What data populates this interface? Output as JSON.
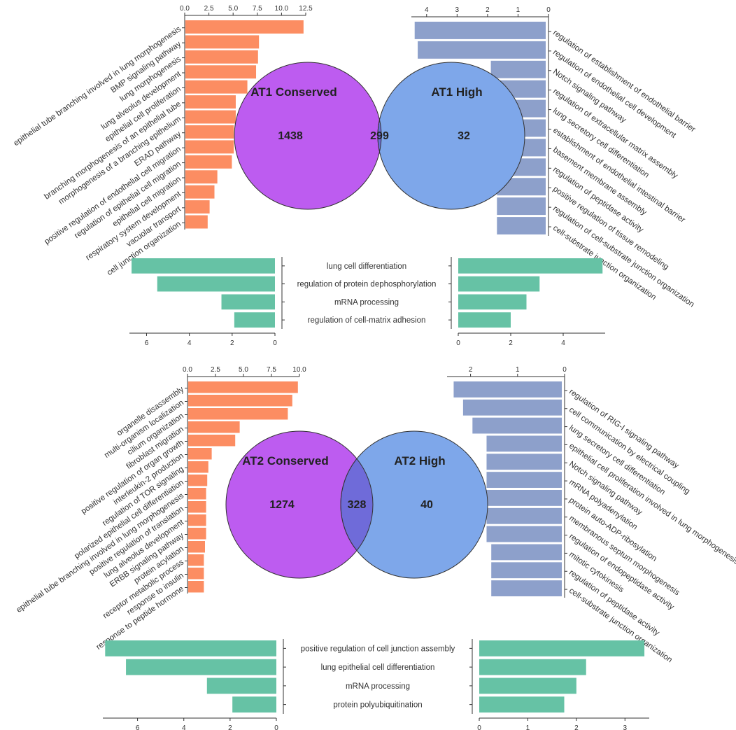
{
  "colors": {
    "conserved_bar": "#fc8d62",
    "high_bar": "#8da0cb",
    "shared_bar": "#66c2a5",
    "conserved_circle": "#bd5cf0",
    "high_circle": "#7ea7ea",
    "overlap": "#6f6bd9"
  },
  "chart_data": [
    {
      "type": "bar",
      "panel": "AT1",
      "role": "conserved",
      "orientation": "horizontal",
      "xlim": [
        0,
        12.5
      ],
      "ticks": [
        "0.0",
        "2.5",
        "5.0",
        "7.5",
        "10.0",
        "12.5"
      ],
      "categories": [
        "epithelial tube branching involved in lung morphogenesis",
        "BMP signaling pathway",
        "lung morphogenesis",
        "lung alveolus development",
        "epithelial cell proliferation",
        "branching morphogenesis of an epithelial tube",
        "morphogenesis of a branching epithelium",
        "ERAD pathway",
        "positive regulation of endothelial cell migration",
        "regulation of epithelial cell migration",
        "epithelial cell migration",
        "respiratory system development",
        "vacuolar transport",
        "cell junction organization"
      ],
      "values": [
        12.2,
        7.6,
        7.5,
        7.3,
        6.4,
        5.2,
        5.2,
        5.0,
        5.0,
        4.8,
        3.3,
        3.0,
        2.5,
        2.3
      ]
    },
    {
      "type": "bar",
      "panel": "AT1",
      "role": "high",
      "orientation": "horizontal",
      "reversed": true,
      "xlim": [
        0,
        4.5
      ],
      "ticks": [
        "4",
        "3",
        "2",
        "1",
        "0"
      ],
      "categories": [
        "regulation of establishment of endothelial barrier",
        "regulation of endothelial cell development",
        "Notch signaling pathway",
        "regulation of extracellular matrix assembly",
        "lung secretory cell differentiation",
        "establishment of endothelial intestinal barrier",
        "basement membrane assembly",
        "regulation of peptidase activity",
        "positive regulation of tissue remodeling",
        "regulation of cell-substrate junction organization",
        "cell-substrate junction organization"
      ],
      "values": [
        4.3,
        4.2,
        1.8,
        1.8,
        1.8,
        1.8,
        1.7,
        1.6,
        1.6,
        1.6,
        1.6
      ]
    },
    {
      "type": "bar",
      "panel": "AT1",
      "role": "shared",
      "orientation": "horizontal",
      "categories": [
        "lung cell differentiation",
        "regulation of protein dephosphorylation",
        "mRNA processing",
        "regulation of cell-matrix adhesion"
      ],
      "left": {
        "xlim": [
          0,
          6.8
        ],
        "ticks": [
          "6",
          "4",
          "2",
          "0"
        ],
        "values": [
          6.7,
          5.5,
          2.5,
          1.9
        ]
      },
      "right": {
        "xlim": [
          0,
          5.6
        ],
        "ticks": [
          "0",
          "2",
          "4"
        ],
        "values": [
          5.5,
          3.1,
          2.6,
          2.0
        ]
      }
    },
    {
      "type": "bar",
      "panel": "AT2",
      "role": "conserved",
      "orientation": "horizontal",
      "xlim": [
        0,
        10
      ],
      "ticks": [
        "0.0",
        "2.5",
        "5.0",
        "7.5",
        "10.0"
      ],
      "categories": [
        "organelle disassembly",
        "multi-organism localization",
        "cilium organization",
        "fibroblast migration",
        "positive regulation of organ growth",
        "interleukin-2 production",
        "regulation of TOR signaling",
        "polarized epithelial cell differentiation",
        "epithelial tube branching involved in lung morphogenesis",
        "positive regulation of translation",
        "lung alveolus development",
        "ERBB signaling pathway",
        "protein acylation",
        "receptor metabolic process",
        "response to insulin",
        "response to peptide hormone"
      ],
      "values": [
        9.8,
        9.3,
        8.9,
        4.6,
        4.2,
        2.1,
        1.8,
        1.7,
        1.6,
        1.6,
        1.6,
        1.6,
        1.5,
        1.4,
        1.4,
        1.4
      ]
    },
    {
      "type": "bar",
      "panel": "AT2",
      "role": "high",
      "orientation": "horizontal",
      "reversed": true,
      "xlim": [
        0,
        2.5
      ],
      "ticks": [
        "2",
        "1",
        "0"
      ],
      "categories": [
        "regulation of RIG-I signaling pathway",
        "cell communication by electrical coupling",
        "lung secretory cell differentiation",
        "epithelial cell proliferation involved in lung morphogenesis",
        "Notch signaling pathway",
        "mRNA polyadenylation",
        "protein auto-ADP-ribosylation",
        "membranous septum morphogenesis",
        "regulation of endopeptidase activity",
        "mitotic cytokinesis",
        "regulation of peptidase activity",
        "cell-substrate junction organization"
      ],
      "values": [
        2.3,
        2.1,
        1.9,
        1.6,
        1.6,
        1.6,
        1.6,
        1.6,
        1.6,
        1.5,
        1.5,
        1.5
      ]
    },
    {
      "type": "bar",
      "panel": "AT2",
      "role": "shared",
      "orientation": "horizontal",
      "categories": [
        "positive regulation of cell junction assembly",
        "lung epithelial cell differentiation",
        "mRNA processing",
        "protein polyubiquitination"
      ],
      "left": {
        "xlim": [
          0,
          7.5
        ],
        "ticks": [
          "6",
          "4",
          "2",
          "0"
        ],
        "values": [
          7.4,
          6.5,
          3.0,
          1.9
        ]
      },
      "right": {
        "xlim": [
          0,
          3.5
        ],
        "ticks": [
          "0",
          "1",
          "2",
          "3"
        ],
        "values": [
          3.4,
          2.2,
          2.0,
          1.75
        ]
      }
    }
  ],
  "venns": [
    {
      "left_label": "AT1 Conserved",
      "right_label": "AT1 High",
      "left_only": "1438",
      "overlap": "299",
      "right_only": "32"
    },
    {
      "left_label": "AT2 Conserved",
      "right_label": "AT2 High",
      "left_only": "1274",
      "overlap": "328",
      "right_only": "40"
    }
  ]
}
